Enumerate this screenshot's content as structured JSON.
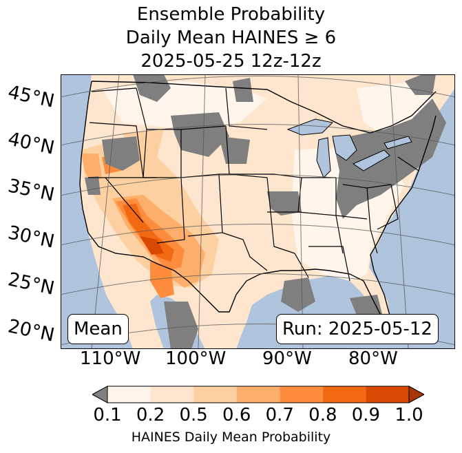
{
  "title": {
    "line1": "Ensemble Probability",
    "line2": "Daily Mean HAINES ≥ 6",
    "line3": "2025-05-25 12z-12z"
  },
  "lat_labels": [
    "45°N",
    "40°N",
    "35°N",
    "30°N",
    "25°N",
    "20°N"
  ],
  "lon_labels": [
    "110°W",
    "100°W",
    "90°W",
    "80°W"
  ],
  "badges": {
    "left": "Mean",
    "right": "Run: 2025-05-12"
  },
  "colorbar": {
    "ticks": [
      "0.1",
      "0.2",
      "0.5",
      "0.6",
      "0.7",
      "0.8",
      "0.9",
      "1.0"
    ],
    "label": "HAINES Daily Mean Probability",
    "under_color": "#808080",
    "colors": [
      "#fff5eb",
      "#fee6ce",
      "#fdd0a2",
      "#fdae6b",
      "#fd8d3c",
      "#f16913",
      "#d94801",
      "#a63603"
    ]
  },
  "colors": {
    "ocean": "#b0c4de",
    "land": "#fee6ce",
    "no_data": "#7f7f7f",
    "lakes": "#b0c4de"
  }
}
